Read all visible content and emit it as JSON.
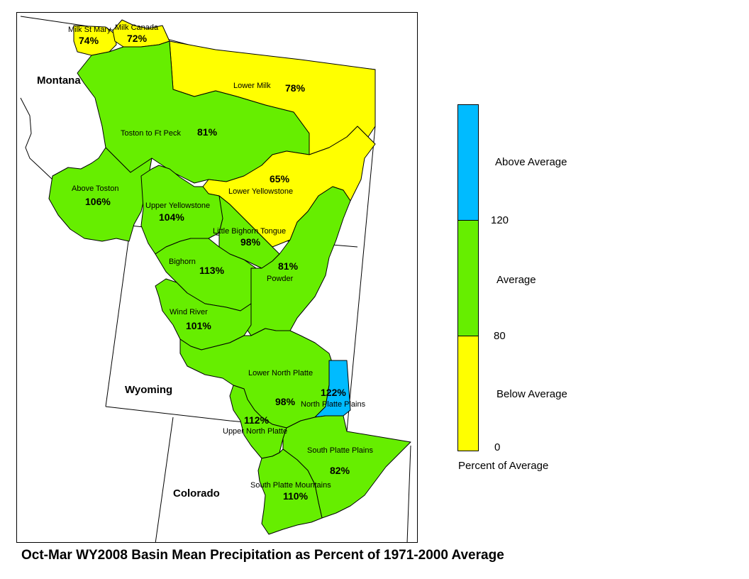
{
  "title": "Oct-Mar WY2008 Basin Mean Precipitation as Percent of 1971-2000 Average",
  "colors": {
    "below": "#ffff00",
    "average": "#66ee00",
    "above": "#00bbff",
    "outline": "#000000"
  },
  "states": {
    "montana": "Montana",
    "wyoming": "Wyoming",
    "colorado": "Colorado"
  },
  "basins": [
    {
      "id": "milk-st-mary",
      "name": "Milk St Mary",
      "pct": "74%",
      "value": 74,
      "category": "below"
    },
    {
      "id": "milk-canada",
      "name": "Milk Canada",
      "pct": "72%",
      "value": 72,
      "category": "below"
    },
    {
      "id": "lower-milk",
      "name": "Lower Milk",
      "pct": "78%",
      "value": 78,
      "category": "below"
    },
    {
      "id": "toston-ft-peck",
      "name": "Toston to Ft Peck",
      "pct": "81%",
      "value": 81,
      "category": "average"
    },
    {
      "id": "lower-yellowstone",
      "name": "Lower Yellowstone",
      "pct": "65%",
      "value": 65,
      "category": "below"
    },
    {
      "id": "above-toston",
      "name": "Above Toston",
      "pct": "106%",
      "value": 106,
      "category": "average"
    },
    {
      "id": "upper-yellowstone",
      "name": "Upper Yellowstone",
      "pct": "104%",
      "value": 104,
      "category": "average"
    },
    {
      "id": "little-bighorn-tongue",
      "name": "Little Bighorn Tongue",
      "pct": "98%",
      "value": 98,
      "category": "average"
    },
    {
      "id": "bighorn",
      "name": "Bighorn",
      "pct": "113%",
      "value": 113,
      "category": "average"
    },
    {
      "id": "powder",
      "name": "Powder",
      "pct": "81%",
      "value": 81,
      "category": "average"
    },
    {
      "id": "wind-river",
      "name": "Wind River",
      "pct": "101%",
      "value": 101,
      "category": "average"
    },
    {
      "id": "lower-north-platte",
      "name": "Lower North Platte",
      "pct": "98%",
      "value": 98,
      "category": "average"
    },
    {
      "id": "north-platte-plains",
      "name": "North Platte Plains",
      "pct": "122%",
      "value": 122,
      "category": "above"
    },
    {
      "id": "upper-north-platte",
      "name": "Upper North Platte",
      "pct": "112%",
      "value": 112,
      "category": "average"
    },
    {
      "id": "south-platte-plains",
      "name": "South Platte Plains",
      "pct": "82%",
      "value": 82,
      "category": "average"
    },
    {
      "id": "south-platte-mountains",
      "name": "South Platte Mountains",
      "pct": "110%",
      "value": 110,
      "category": "average"
    }
  ],
  "legend": {
    "above_label": "Above Average",
    "average_label": "Average",
    "below_label": "Below Average",
    "tick_120": "120",
    "tick_80": "80",
    "tick_0": "0",
    "caption": "Percent of Average",
    "breaks": [
      0,
      80,
      120
    ]
  }
}
